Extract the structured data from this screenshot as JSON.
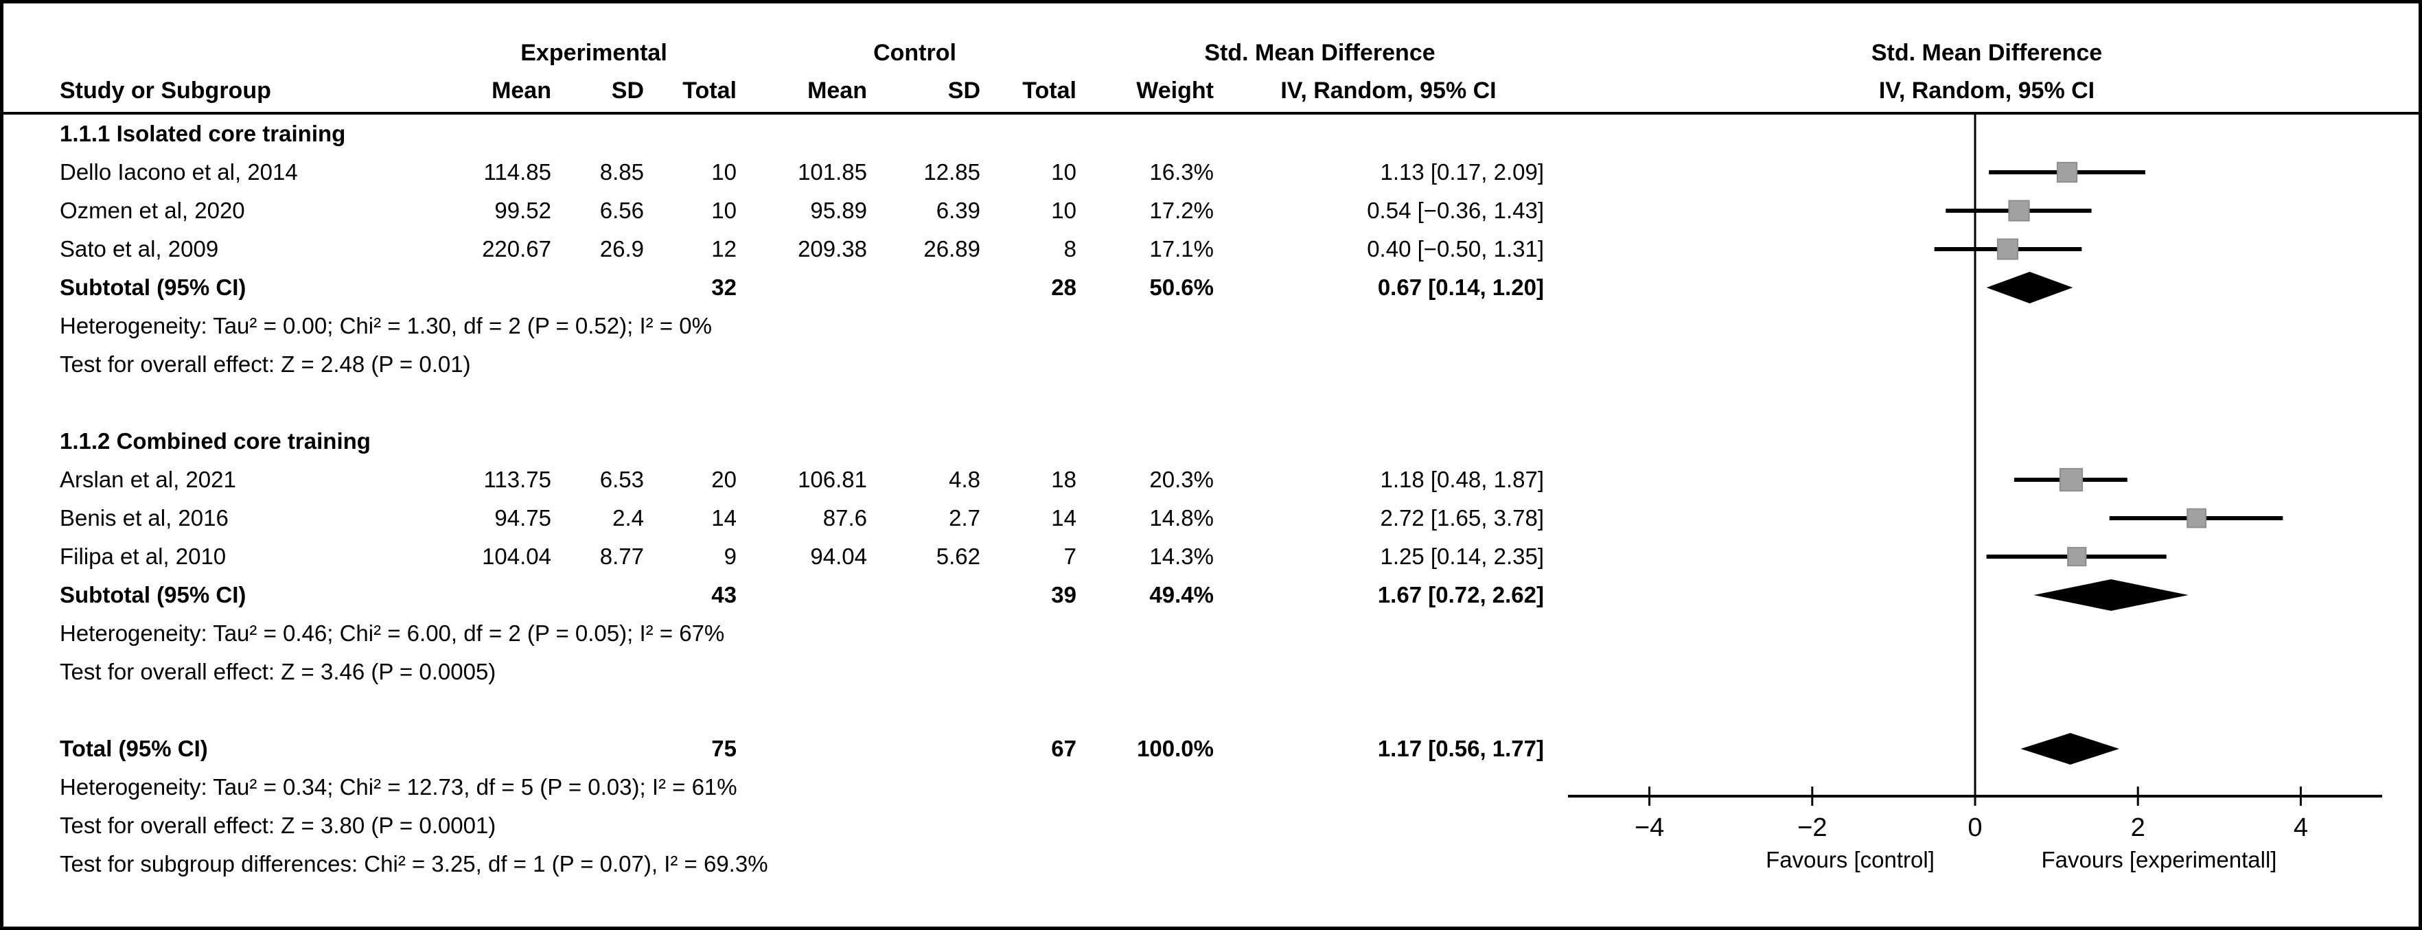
{
  "header": {
    "group1": "Experimental",
    "group2": "Control",
    "effect_title": "Std. Mean Difference",
    "effect_sub": "IV, Random, 95% CI",
    "plot_title": "Std. Mean Difference",
    "plot_sub": "IV, Random, 95% CI",
    "col_study": "Study or Subgroup",
    "col_mean": "Mean",
    "col_sd": "SD",
    "col_total": "Total",
    "col_weight": "Weight"
  },
  "chart_data": {
    "type": "scatter",
    "chart_kind": "forest_plot",
    "effect_measure": "Std. Mean Difference",
    "method": "IV, Random, 95% CI",
    "axis": {
      "ticks": [
        -4,
        -2,
        0,
        2,
        4
      ],
      "xlim": [
        -5,
        5
      ],
      "zero_line": 0,
      "label_left": "Favours [control]",
      "label_right": "Favours [experimentall]"
    },
    "subgroups": [
      {
        "name": "1.1.1 Isolated core training",
        "studies": [
          {
            "study": "Dello Iacono et al, 2014",
            "exp_mean": "114.85",
            "exp_sd": "8.85",
            "exp_total": "10",
            "ctrl_mean": "101.85",
            "ctrl_sd": "12.85",
            "ctrl_total": "10",
            "weight": "16.3%",
            "weight_val": 16.3,
            "ci_text": "1.13 [0.17, 2.09]",
            "est": 1.13,
            "lo": 0.17,
            "hi": 2.09
          },
          {
            "study": "Ozmen et al, 2020",
            "exp_mean": "99.52",
            "exp_sd": "6.56",
            "exp_total": "10",
            "ctrl_mean": "95.89",
            "ctrl_sd": "6.39",
            "ctrl_total": "10",
            "weight": "17.2%",
            "weight_val": 17.2,
            "ci_text": "0.54 [−0.36, 1.43]",
            "est": 0.54,
            "lo": -0.36,
            "hi": 1.43
          },
          {
            "study": "Sato et al, 2009",
            "exp_mean": "220.67",
            "exp_sd": "26.9",
            "exp_total": "12",
            "ctrl_mean": "209.38",
            "ctrl_sd": "26.89",
            "ctrl_total": "8",
            "weight": "17.1%",
            "weight_val": 17.1,
            "ci_text": "0.40 [−0.50, 1.31]",
            "est": 0.4,
            "lo": -0.5,
            "hi": 1.31
          }
        ],
        "subtotal": {
          "label": "Subtotal (95% CI)",
          "exp_total": "32",
          "ctrl_total": "28",
          "weight": "50.6%",
          "ci_text": "0.67 [0.14, 1.20]",
          "est": 0.67,
          "lo": 0.14,
          "hi": 1.2
        },
        "heterogeneity": "Heterogeneity: Tau² = 0.00; Chi² = 1.30, df = 2 (P = 0.52); I² = 0%",
        "overall_effect": "Test for overall effect: Z = 2.48 (P = 0.01)"
      },
      {
        "name": "1.1.2 Combined core training",
        "studies": [
          {
            "study": "Arslan et al, 2021",
            "exp_mean": "113.75",
            "exp_sd": "6.53",
            "exp_total": "20",
            "ctrl_mean": "106.81",
            "ctrl_sd": "4.8",
            "ctrl_total": "18",
            "weight": "20.3%",
            "weight_val": 20.3,
            "ci_text": "1.18 [0.48, 1.87]",
            "est": 1.18,
            "lo": 0.48,
            "hi": 1.87
          },
          {
            "study": "Benis et al, 2016",
            "exp_mean": "94.75",
            "exp_sd": "2.4",
            "exp_total": "14",
            "ctrl_mean": "87.6",
            "ctrl_sd": "2.7",
            "ctrl_total": "14",
            "weight": "14.8%",
            "weight_val": 14.8,
            "ci_text": "2.72 [1.65, 3.78]",
            "est": 2.72,
            "lo": 1.65,
            "hi": 3.78
          },
          {
            "study": "Filipa et al, 2010",
            "exp_mean": "104.04",
            "exp_sd": "8.77",
            "exp_total": "9",
            "ctrl_mean": "94.04",
            "ctrl_sd": "5.62",
            "ctrl_total": "7",
            "weight": "14.3%",
            "weight_val": 14.3,
            "ci_text": "1.25 [0.14, 2.35]",
            "est": 1.25,
            "lo": 0.14,
            "hi": 2.35
          }
        ],
        "subtotal": {
          "label": "Subtotal (95% CI)",
          "exp_total": "43",
          "ctrl_total": "39",
          "weight": "49.4%",
          "ci_text": "1.67 [0.72, 2.62]",
          "est": 1.67,
          "lo": 0.72,
          "hi": 2.62
        },
        "heterogeneity": "Heterogeneity: Tau² = 0.46; Chi² = 6.00, df = 2 (P = 0.05); I² = 67%",
        "overall_effect": "Test for overall effect: Z = 3.46 (P = 0.0005)"
      }
    ],
    "total": {
      "label": "Total (95% CI)",
      "exp_total": "75",
      "ctrl_total": "67",
      "weight": "100.0%",
      "ci_text": "1.17 [0.56, 1.77]",
      "est": 1.17,
      "lo": 0.56,
      "hi": 1.77
    },
    "total_heterogeneity": "Heterogeneity: Tau² = 0.34; Chi² = 12.73, df = 5 (P = 0.03); I² = 61%",
    "total_overall_effect": "Test for overall effect: Z = 3.80 (P = 0.0001)",
    "subgroup_difference": "Test for subgroup differences: Chi² = 3.25, df = 1 (P = 0.07), I² = 69.3%",
    "colors": {
      "square_fill": "#a1a1a1",
      "square_stroke": "#8d8d8d",
      "diamond": "#000000",
      "line": "#000000",
      "axis": "#000000"
    }
  }
}
